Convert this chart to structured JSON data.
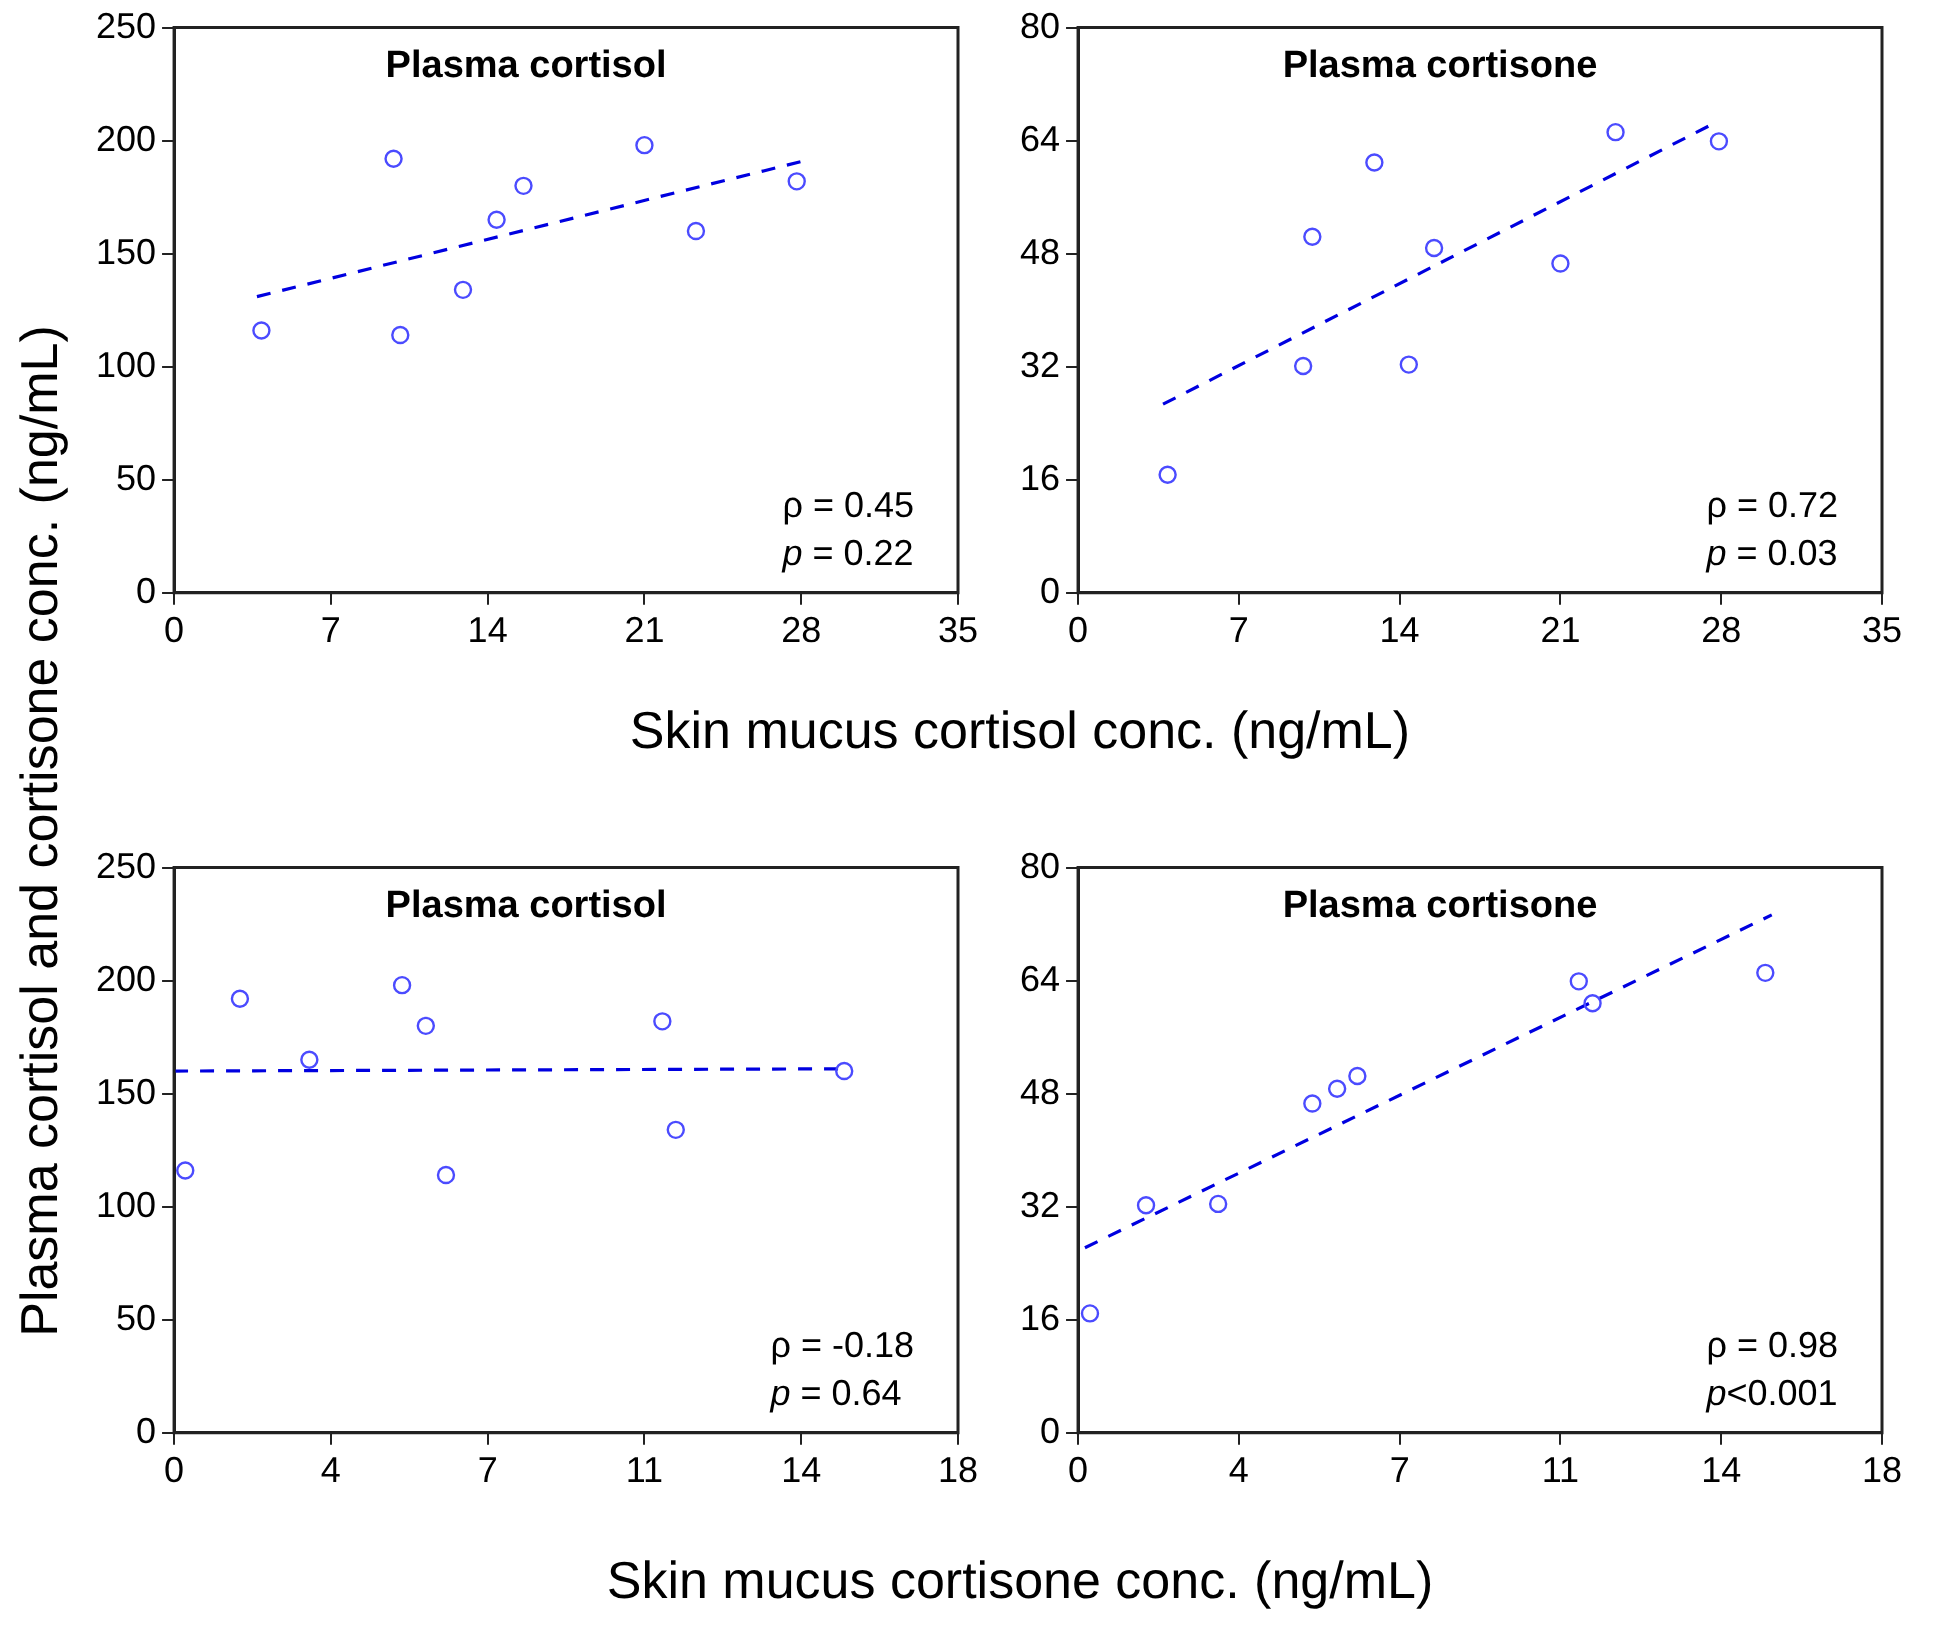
{
  "chart_data": [
    {
      "type": "scatter",
      "title": "Plasma cortisol",
      "xlabel": "Skin mucus cortisol conc. (ng/mL)",
      "ylabel": "Plasma cortisol and cortisone conc. (ng/mL)",
      "xlim": [
        0,
        35
      ],
      "xticks": [
        0,
        7,
        14,
        21,
        28,
        35
      ],
      "ylim": [
        0,
        250
      ],
      "yticks": [
        0,
        50,
        100,
        150,
        200,
        250
      ],
      "grid": false,
      "legend": false,
      "marker": "circle",
      "annotations": [
        "ρ = 0.45",
        "p = 0.22"
      ],
      "series": [
        {
          "type": "scatter",
          "color": "#4b4bff",
          "x": [
            3.9,
            9.8,
            10.1,
            12.9,
            14.4,
            15.6,
            21.0,
            23.3,
            27.8
          ],
          "values": [
            116,
            192,
            114,
            134,
            165,
            180,
            198,
            160,
            182
          ]
        },
        {
          "type": "line",
          "line_style": "dashed",
          "marker": "none",
          "color": "#0000e0",
          "x": [
            3.7,
            28.1
          ],
          "values": [
            131,
            191
          ]
        }
      ]
    },
    {
      "type": "scatter",
      "title": "Plasma cortisone",
      "xlim": [
        0,
        35
      ],
      "xticks": [
        0,
        7,
        14,
        21,
        28,
        35
      ],
      "ylim": [
        0,
        80
      ],
      "yticks": [
        0,
        16,
        32,
        48,
        64,
        80
      ],
      "grid": false,
      "legend": false,
      "marker": "circle",
      "annotations": [
        "ρ = 0.72",
        "p = 0.03"
      ],
      "series": [
        {
          "type": "scatter",
          "color": "#4b4bff",
          "x": [
            3.9,
            9.8,
            10.2,
            12.9,
            14.4,
            15.5,
            21.0,
            23.4,
            27.9
          ],
          "values": [
            16.7,
            32.1,
            50.4,
            60.9,
            32.3,
            48.8,
            46.6,
            65.2,
            63.9
          ]
        },
        {
          "type": "line",
          "line_style": "dashed",
          "marker": "none",
          "color": "#0000e0",
          "x": [
            3.7,
            27.6
          ],
          "values": [
            26.7,
            66.3
          ]
        }
      ]
    },
    {
      "type": "scatter",
      "title": "Plasma cortisol",
      "xlabel": "Skin mucus cortisone conc. (ng/mL)",
      "xlim": [
        0,
        17.5
      ],
      "xticks": [
        0,
        {
          "value": 3.5,
          "label": "4"
        },
        7,
        {
          "value": 10.5,
          "label": "11"
        },
        14,
        {
          "value": 17.5,
          "label": "18"
        }
      ],
      "ylim": [
        0,
        250
      ],
      "yticks": [
        0,
        50,
        100,
        150,
        200,
        250
      ],
      "grid": false,
      "legend": false,
      "marker": "circle",
      "annotations": [
        "ρ = -0.18",
        "p = 0.64"
      ],
      "series": [
        {
          "type": "scatter",
          "color": "#4b4bff",
          "x": [
            0.25,
            1.47,
            3.02,
            5.09,
            5.62,
            6.07,
            10.9,
            11.2,
            14.96
          ],
          "values": [
            116,
            192,
            165,
            198,
            180,
            114,
            182,
            134,
            160
          ]
        },
        {
          "type": "line",
          "line_style": "dashed",
          "marker": "none",
          "color": "#0000e0",
          "x": [
            0,
            14.84
          ],
          "values": [
            160,
            161
          ]
        }
      ]
    },
    {
      "type": "scatter",
      "title": "Plasma cortisone",
      "xlim": [
        0,
        17.5
      ],
      "xticks": [
        0,
        {
          "value": 3.5,
          "label": "4"
        },
        7,
        {
          "value": 10.5,
          "label": "11"
        },
        14,
        {
          "value": 17.5,
          "label": "18"
        }
      ],
      "ylim": [
        0,
        80
      ],
      "yticks": [
        0,
        16,
        32,
        48,
        64,
        80
      ],
      "grid": false,
      "legend": false,
      "marker": "circle",
      "annotations": [
        "ρ = 0.98",
        "p<0.001"
      ],
      "series": [
        {
          "type": "scatter",
          "color": "#4b4bff",
          "x": [
            0.26,
            1.48,
            3.05,
            5.1,
            5.64,
            6.08,
            10.9,
            11.2,
            14.96
          ],
          "values": [
            16.9,
            32.2,
            32.4,
            46.6,
            48.7,
            50.5,
            63.9,
            60.8,
            65.1
          ]
        },
        {
          "type": "line",
          "line_style": "dashed",
          "marker": "none",
          "color": "#0000e0",
          "x": [
            0.15,
            15.1
          ],
          "values": [
            26.2,
            73.3
          ]
        }
      ]
    }
  ]
}
